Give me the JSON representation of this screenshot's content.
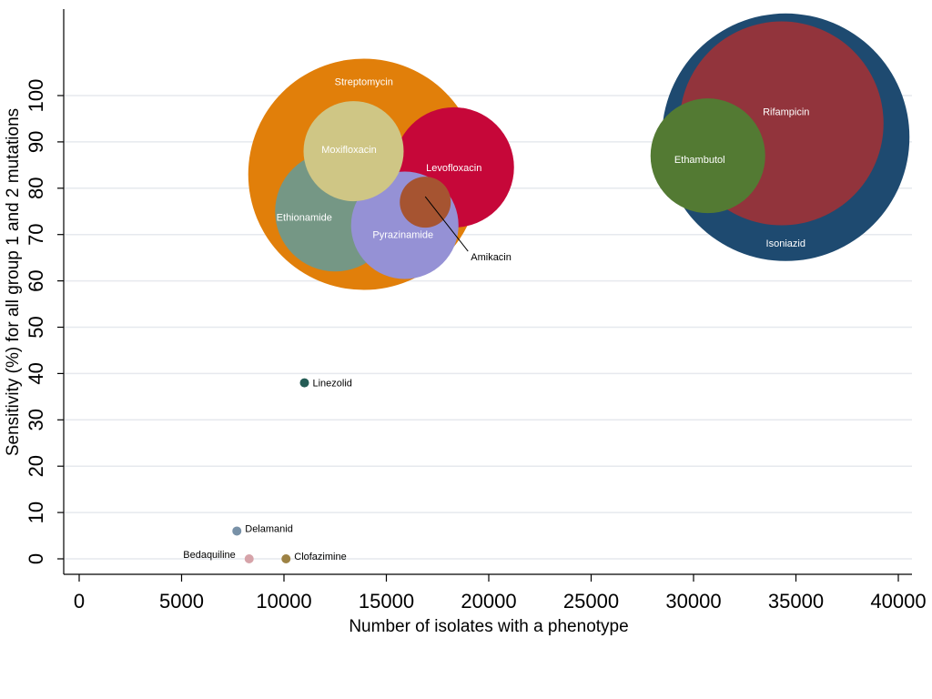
{
  "chart_data": {
    "type": "scatter",
    "subtype": "bubble",
    "title": "",
    "xlabel": "Number of isolates with a phenotype",
    "ylabel": "Sensitivity (%) for all group 1 and 2 mutations",
    "xlim": [
      0,
      40000
    ],
    "ylim": [
      0,
      100
    ],
    "x_ticks": [
      0,
      5000,
      10000,
      15000,
      20000,
      25000,
      30000,
      35000,
      40000
    ],
    "y_ticks": [
      0,
      10,
      20,
      30,
      40,
      50,
      60,
      70,
      80,
      90,
      100
    ],
    "grid": "horizontal",
    "legend": "none",
    "points": [
      {
        "name": "Isoniazid",
        "x": 34500,
        "y": 91,
        "r": 136,
        "color": "#1e4a70",
        "label_color": "#ffffff"
      },
      {
        "name": "Rifampicin",
        "x": 34300,
        "y": 94,
        "r": 112,
        "color": "#92343c",
        "label_color": "#ffffff"
      },
      {
        "name": "Ethambutol",
        "x": 30700,
        "y": 87,
        "r": 63,
        "color": "#537a33",
        "label_color": "#ffffff"
      },
      {
        "name": "Streptomycin",
        "x": 13900,
        "y": 83,
        "r": 127,
        "color": "#e17f0a",
        "label_color": "#ffffff"
      },
      {
        "name": "Levofloxacin",
        "x": 18300,
        "y": 84.5,
        "r": 66,
        "color": "#c60739",
        "label_color": "#ffffff"
      },
      {
        "name": "Ethionamide",
        "x": 12500,
        "y": 75,
        "r": 66,
        "color": "#759785",
        "label_color": "#ffffff"
      },
      {
        "name": "Pyrazinamide",
        "x": 15900,
        "y": 72,
        "r": 59,
        "color": "#9591d5",
        "label_color": "#ffffff"
      },
      {
        "name": "Moxifloxacin",
        "x": 13400,
        "y": 88,
        "r": 55,
        "color": "#cfc685",
        "label_color": "#ffffff"
      },
      {
        "name": "Amikacin",
        "x": 16900,
        "y": 77,
        "r": 28,
        "color": "#a65431",
        "label_color": "#000000"
      },
      {
        "name": "Linezolid",
        "x": 11000,
        "y": 38,
        "r": 5,
        "color": "#245c55",
        "label_color": "#000000"
      },
      {
        "name": "Delamanid",
        "x": 7700,
        "y": 6,
        "r": 5,
        "color": "#7891a7",
        "label_color": "#000000"
      },
      {
        "name": "Bedaquiline",
        "x": 8300,
        "y": 0,
        "r": 5,
        "color": "#d6a3a9",
        "label_color": "#000000"
      },
      {
        "name": "Clofazimine",
        "x": 10100,
        "y": 0,
        "r": 5,
        "color": "#9d8244",
        "label_color": "#000000"
      }
    ]
  }
}
